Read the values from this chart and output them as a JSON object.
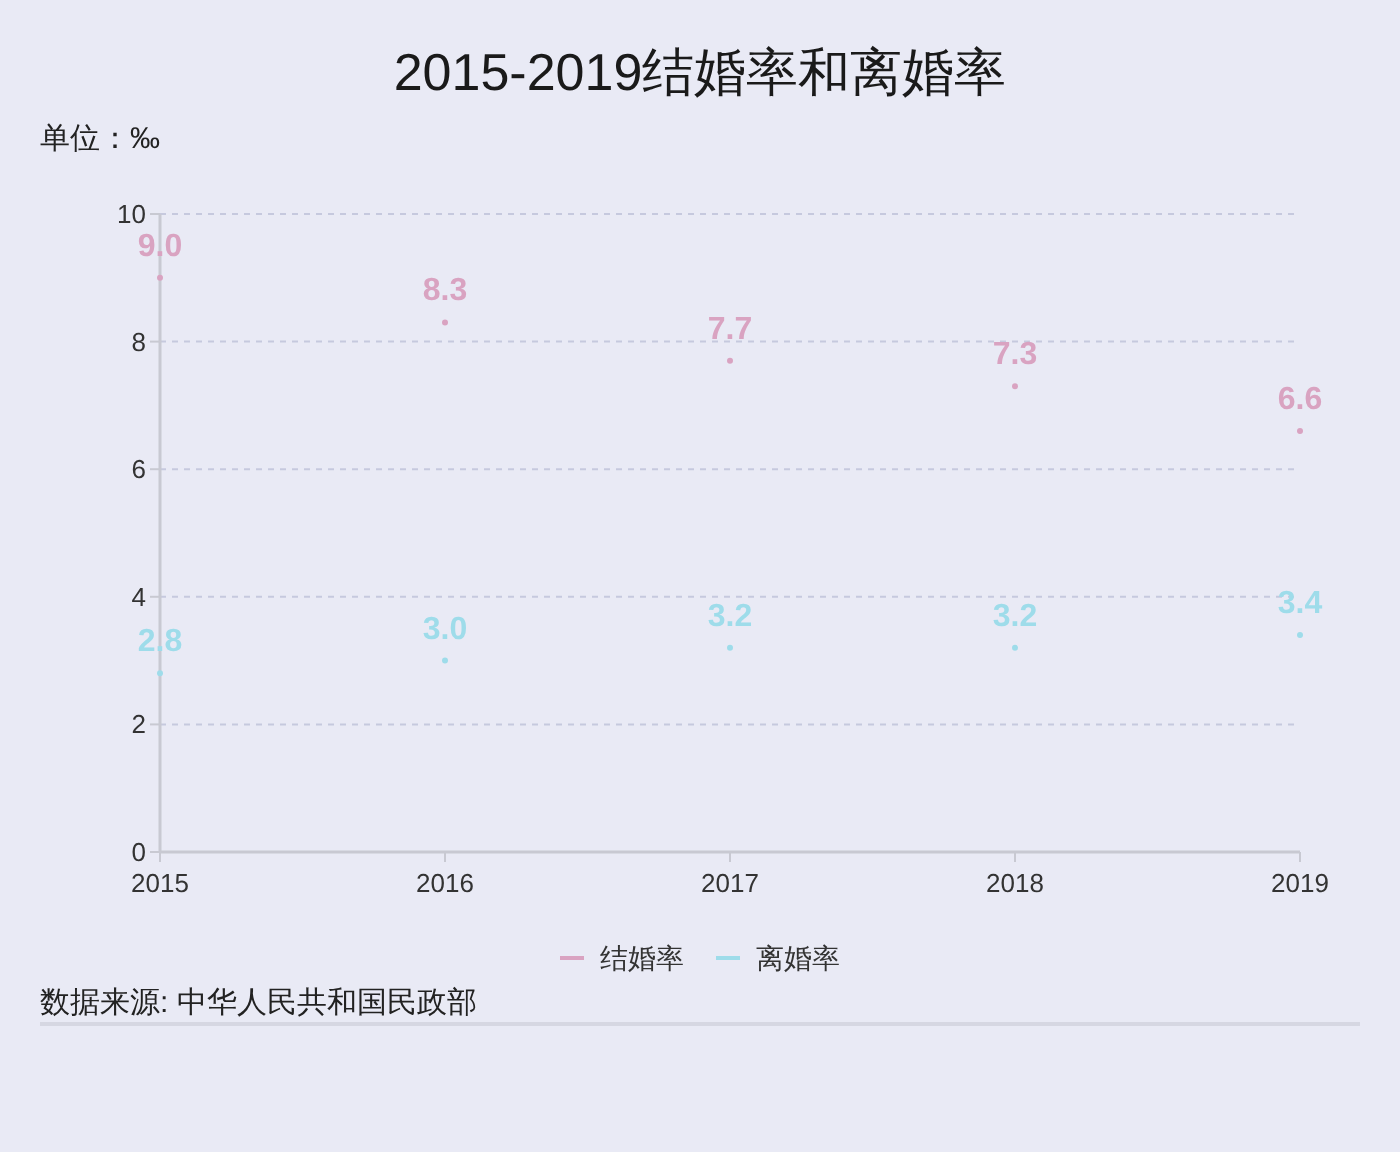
{
  "chart_data": {
    "type": "scatter",
    "title": "2015-2019结婚率和离婚率",
    "ylabel": "单位：‰",
    "annotations": [
      "数据来源: 中华人民共和国民政部"
    ],
    "categories": [
      "2015",
      "2016",
      "2017",
      "2018",
      "2019"
    ],
    "series": [
      {
        "name": "结婚率",
        "color": "#d9a3c1",
        "values": [
          9.0,
          8.3,
          7.7,
          7.3,
          6.6
        ],
        "value_labels": [
          "9.0",
          "8.3",
          "7.7",
          "7.3",
          "6.6"
        ]
      },
      {
        "name": "离婚率",
        "color": "#9edcea",
        "values": [
          2.8,
          3.0,
          3.2,
          3.2,
          3.4
        ],
        "value_labels": [
          "2.8",
          "3.0",
          "3.2",
          "3.2",
          "3.4"
        ]
      }
    ],
    "ylim": [
      0,
      10
    ],
    "yticks": [
      0,
      2,
      4,
      6,
      8,
      10
    ],
    "grid": "y",
    "legend": "bottom",
    "marker": "circle"
  }
}
